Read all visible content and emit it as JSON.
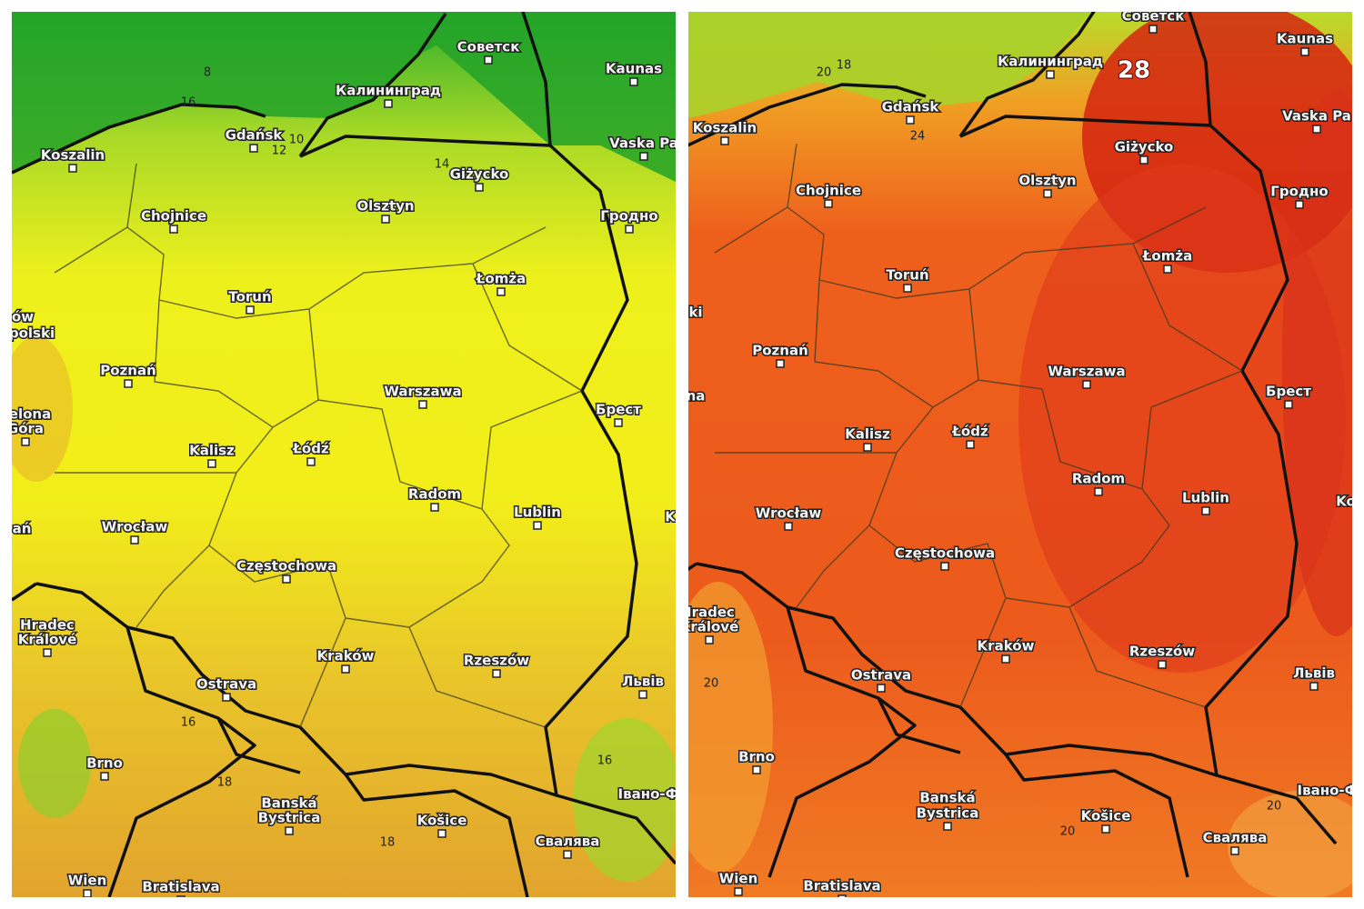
{
  "panels": [
    {
      "cities": [
        "Советск",
        "Калининград",
        "Kaunas",
        "Gdańsk",
        "Koszalin",
        "Vaska Pa",
        "Giżycko",
        "Olsztyn",
        "Chojnice",
        "Гродно",
        "Łomża",
        "Toruń",
        "ów",
        "polski",
        "Poznań",
        "Warszawa",
        "Брест",
        "elona",
        "Góra",
        "Łódź",
        "Kalisz",
        "Radom",
        "Lublin",
        "Wrocław",
        "ań",
        "Częstochowa",
        "Hradec",
        "Králové",
        "Kraków",
        "Rzeszów",
        "Ostrava",
        "Львів",
        "Brno",
        "Івано-Ф",
        "Banská",
        "Bystrica",
        "Košice",
        "Свалява",
        "Wien",
        "Bratislava",
        "K"
      ],
      "contour_labels": [
        8,
        16,
        12,
        10,
        14,
        16,
        18,
        16,
        18
      ]
    },
    {
      "cities": [
        "Советск",
        "Kaunas",
        "Калининград",
        "Gdańsk",
        "Koszalin",
        "Vaska Pa",
        "Giżycko",
        "Olsztyn",
        "Chojnice",
        "Гродно",
        "Łomża",
        "Toruń",
        "ki",
        "Poznań",
        "Warszawa",
        "Брест",
        "na",
        "Łódź",
        "Kalisz",
        "Radom",
        "Lublin",
        "Ko",
        "Wrocław",
        "Częstochowa",
        "Hradec",
        "Králové",
        "Kraków",
        "Rzeszów",
        "Ostrava",
        "Львів",
        "Brno",
        "Banská",
        "Bystrica",
        "Košice",
        "Івано-Ф",
        "Свалява",
        "Wien",
        "Bratislava"
      ],
      "contour_labels": [
        28,
        20,
        18,
        24,
        20,
        20,
        20
      ]
    }
  ]
}
